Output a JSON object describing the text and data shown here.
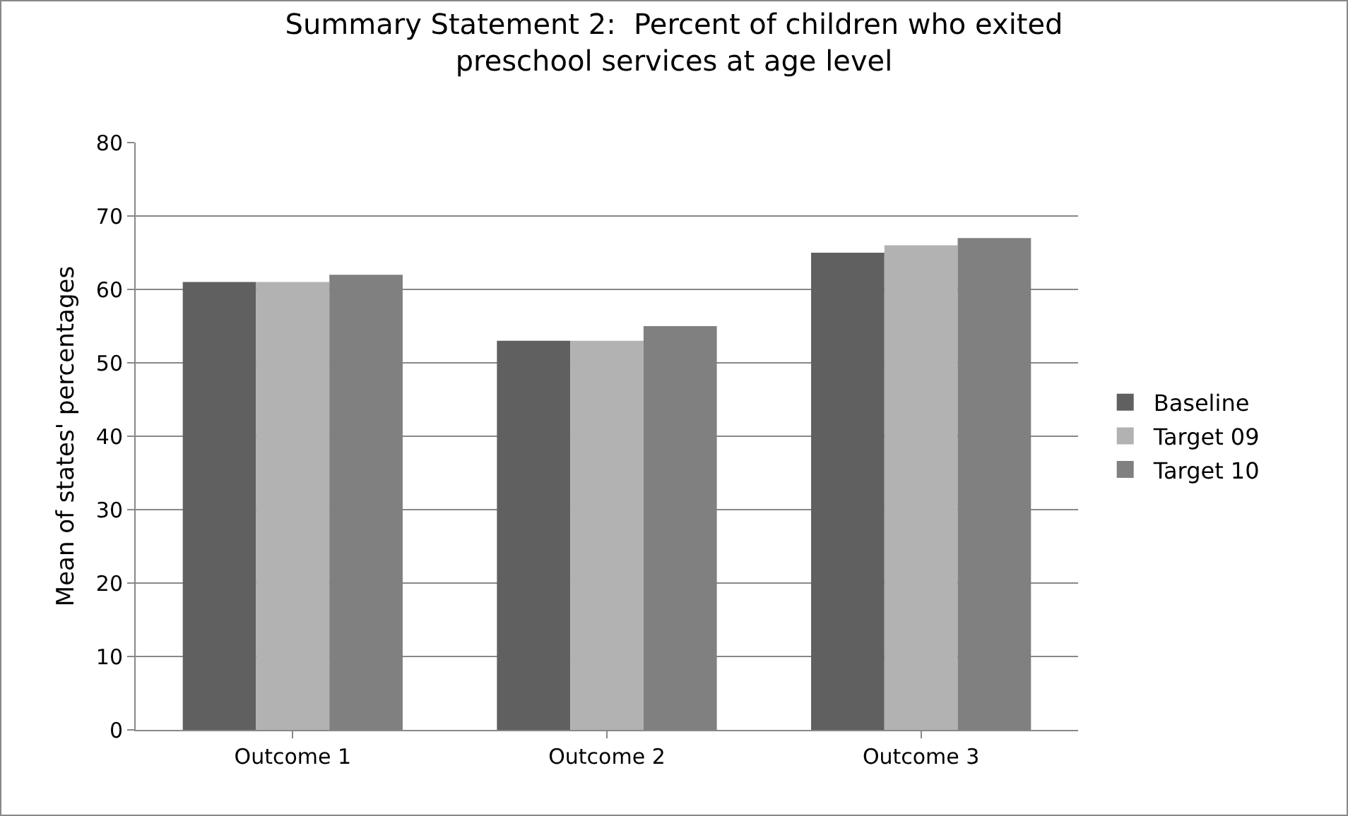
{
  "chart_data": {
    "type": "bar",
    "title": "Summary Statement 2:  Percent of children who exited preschool services at age level",
    "ylabel": "Mean of states' percentages",
    "categories": [
      "Outcome 1",
      "Outcome 2",
      "Outcome 3"
    ],
    "series": [
      {
        "name": "Baseline",
        "color": "#606060",
        "values": [
          61,
          53,
          65
        ]
      },
      {
        "name": "Target 09",
        "color": "#b2b2b2",
        "values": [
          61,
          53,
          66
        ]
      },
      {
        "name": "Target 10",
        "color": "#808080",
        "values": [
          62,
          55,
          67
        ]
      }
    ],
    "ylim": [
      0,
      80
    ],
    "yticks": [
      0,
      10,
      20,
      30,
      40,
      50,
      60,
      70,
      80
    ],
    "grid": "y",
    "legend": "right"
  }
}
